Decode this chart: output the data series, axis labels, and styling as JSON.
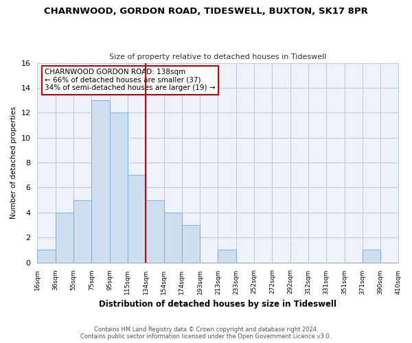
{
  "title": "CHARNWOOD, GORDON ROAD, TIDESWELL, BUXTON, SK17 8PR",
  "subtitle": "Size of property relative to detached houses in Tideswell",
  "xlabel": "Distribution of detached houses by size in Tideswell",
  "ylabel": "Number of detached properties",
  "footer_line1": "Contains HM Land Registry data © Crown copyright and database right 2024.",
  "footer_line2": "Contains public sector information licensed under the Open Government Licence v3.0.",
  "bin_labels": [
    "16sqm",
    "36sqm",
    "55sqm",
    "75sqm",
    "95sqm",
    "115sqm",
    "134sqm",
    "154sqm",
    "174sqm",
    "193sqm",
    "213sqm",
    "233sqm",
    "252sqm",
    "272sqm",
    "292sqm",
    "312sqm",
    "331sqm",
    "351sqm",
    "371sqm",
    "390sqm",
    "410sqm"
  ],
  "bar_values": [
    1,
    4,
    5,
    13,
    12,
    7,
    5,
    4,
    3,
    0,
    1,
    0,
    0,
    0,
    0,
    0,
    0,
    0,
    1,
    0
  ],
  "bar_color": "#cddff0",
  "bar_edge_color": "#8ab4d4",
  "grid_color": "#d0d8e8",
  "bg_color": "#eef3fa",
  "annotation_box_color": "#ffffff",
  "annotation_border_color": "#cc0000",
  "property_line_color": "#cc0000",
  "annotation_title": "CHARNWOOD GORDON ROAD: 138sqm",
  "annotation_line1": "← 66% of detached houses are smaller (37)",
  "annotation_line2": "34% of semi-detached houses are larger (19) →",
  "ylim": [
    0,
    16
  ],
  "yticks": [
    0,
    2,
    4,
    6,
    8,
    10,
    12,
    14,
    16
  ],
  "property_line_x": 6.0
}
